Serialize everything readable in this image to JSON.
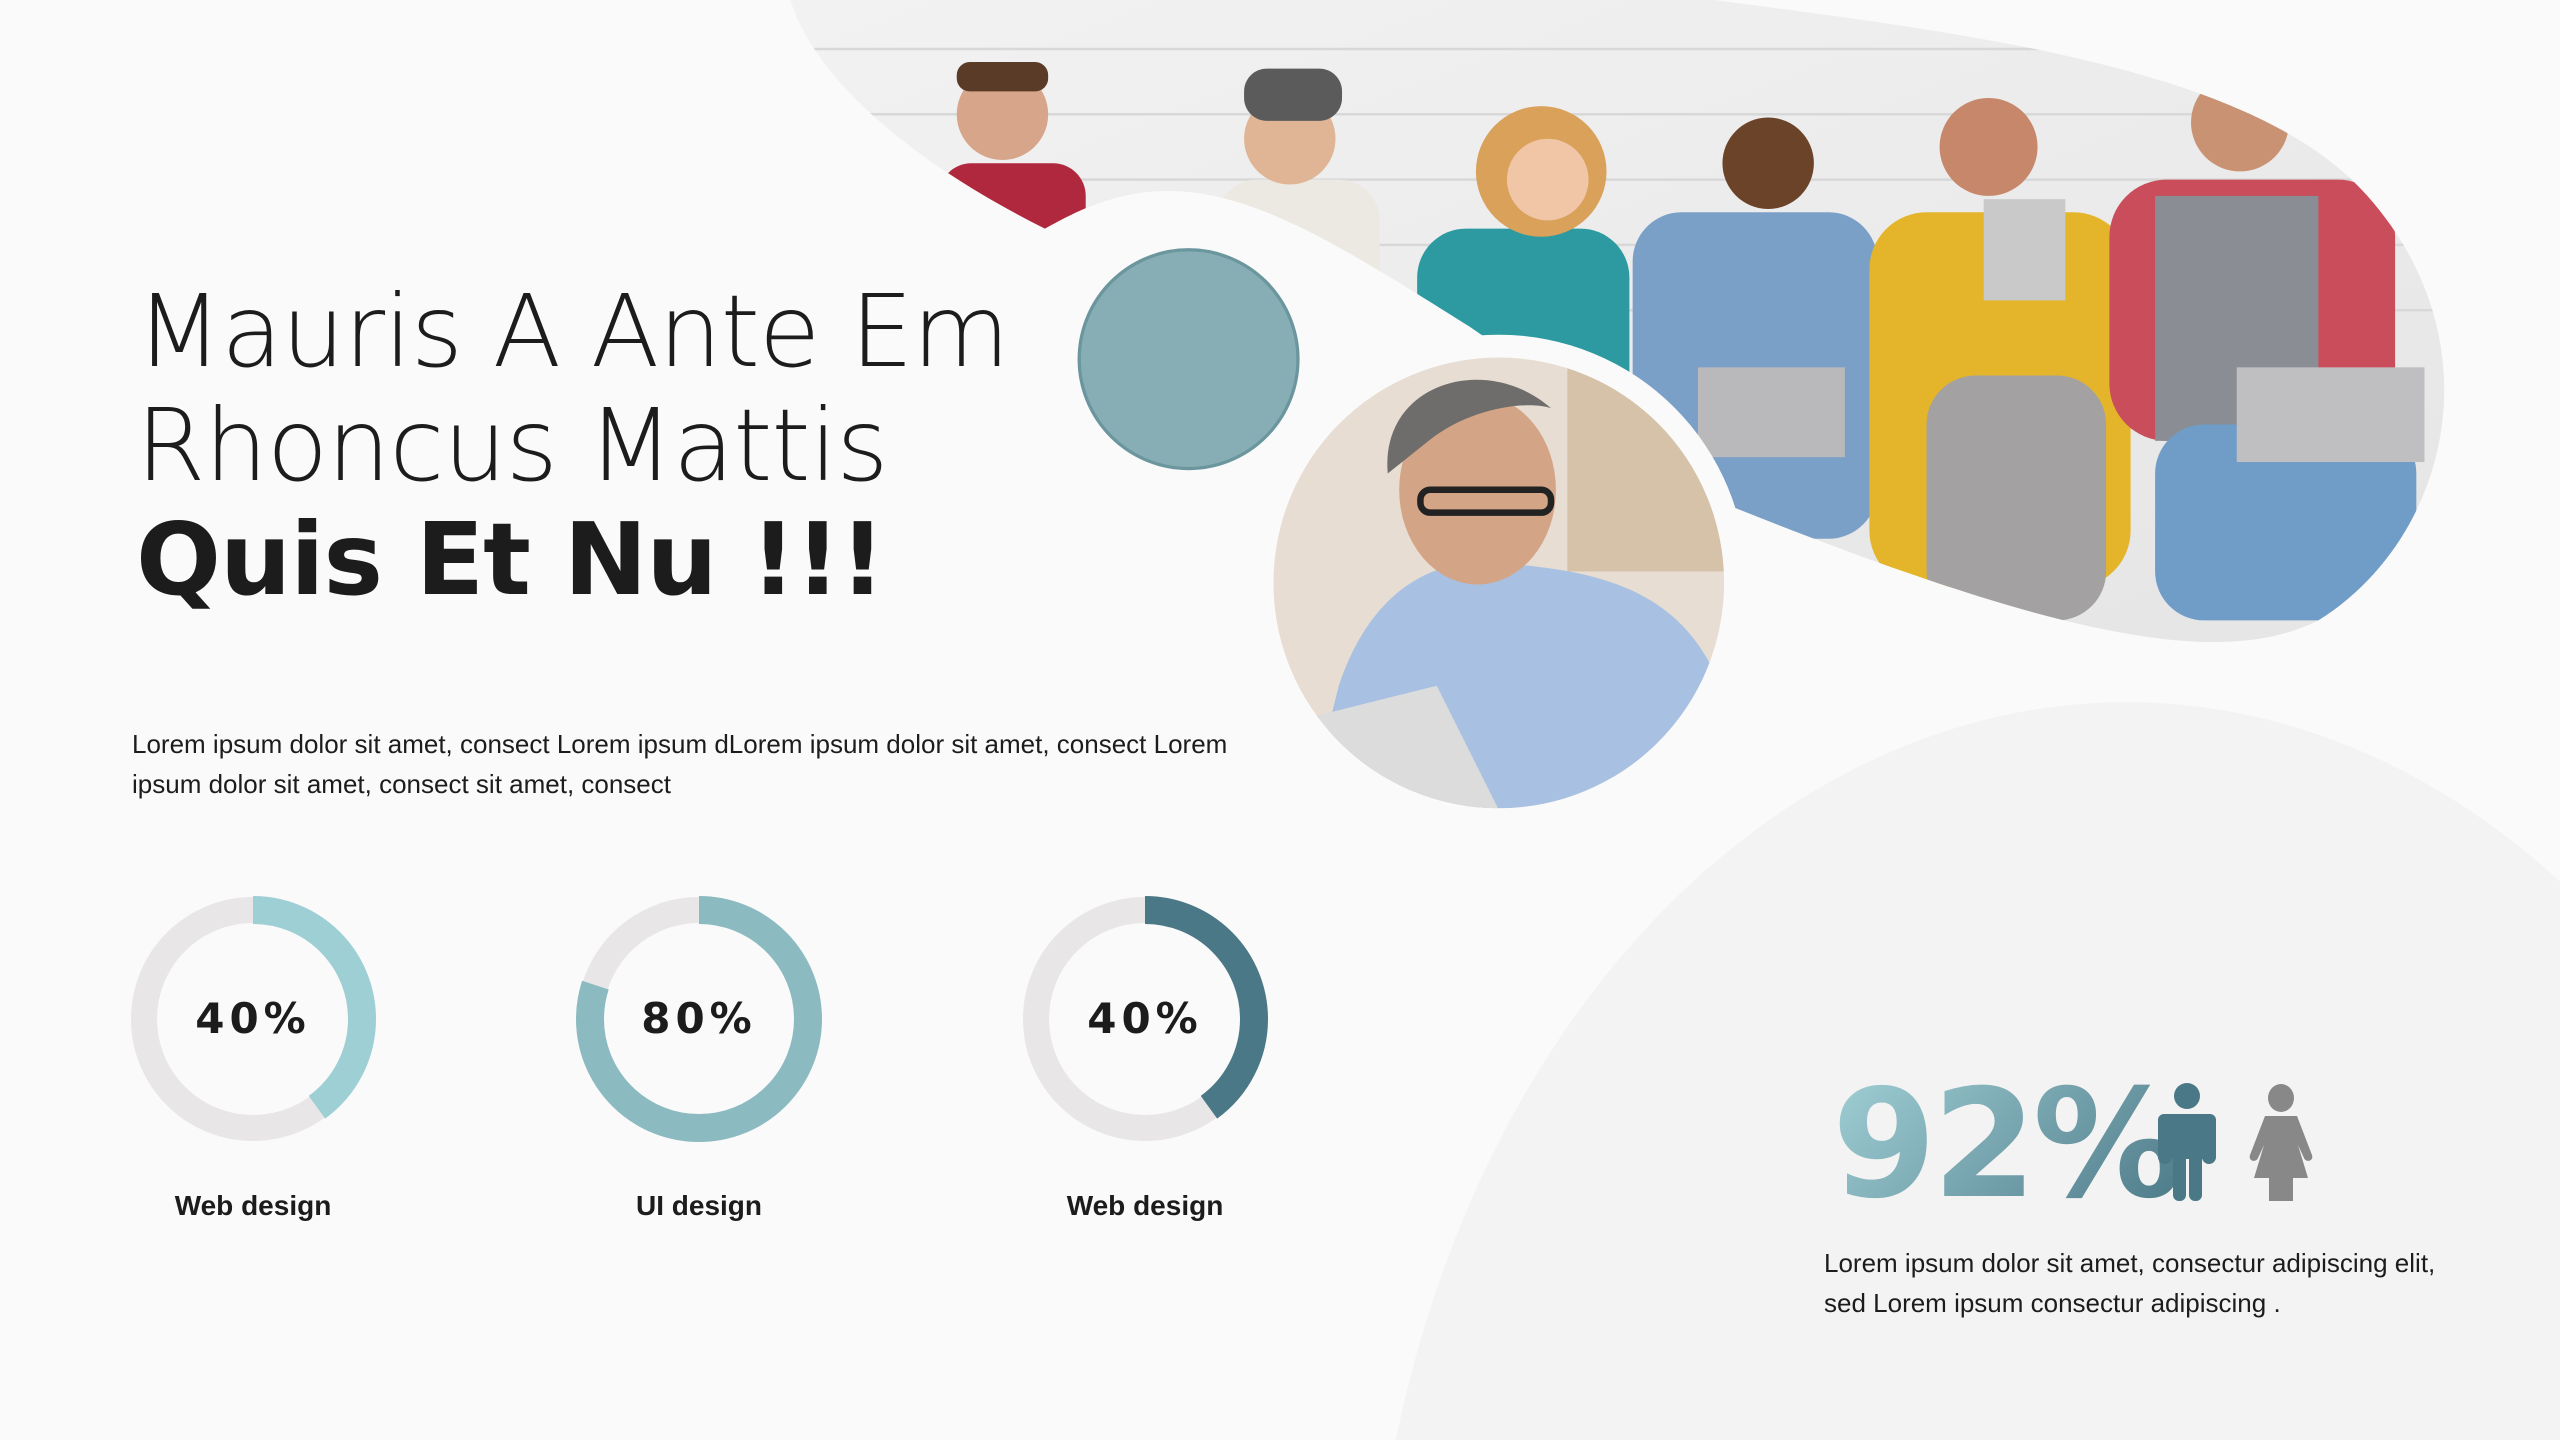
{
  "title": {
    "line1": "Mauris A Ante Em",
    "line2": "Rhoncus Mattis",
    "line3": "Quis Et Nu !!!"
  },
  "description": "Lorem ipsum dolor sit amet, consect Lorem ipsum dLorem ipsum dolor sit amet, consect Lorem ipsum dolor sit amet, consect sit amet, consect",
  "skills": [
    {
      "label": "Web design",
      "percent_text": "40%",
      "value": 40,
      "color": "#9ecfd4"
    },
    {
      "label": "UI design",
      "percent_text": "80%",
      "value": 80,
      "color": "#8bbac0"
    },
    {
      "label": "Web design",
      "percent_text": "40%",
      "value": 40,
      "color": "#4b7886"
    }
  ],
  "track_color": "#e8e6e7",
  "stat": {
    "value": "92%",
    "icons": [
      "male-person-icon",
      "female-person-icon"
    ],
    "male_color": "#4b7886",
    "female_color": "#888888",
    "description": "Lorem ipsum dolor sit amet, consectur adipiscing elit, sed Lorem ipsum consectur adipiscing ."
  },
  "images": [
    "group-photo",
    "teal-circle-photo",
    "man-with-tablet-photo"
  ]
}
